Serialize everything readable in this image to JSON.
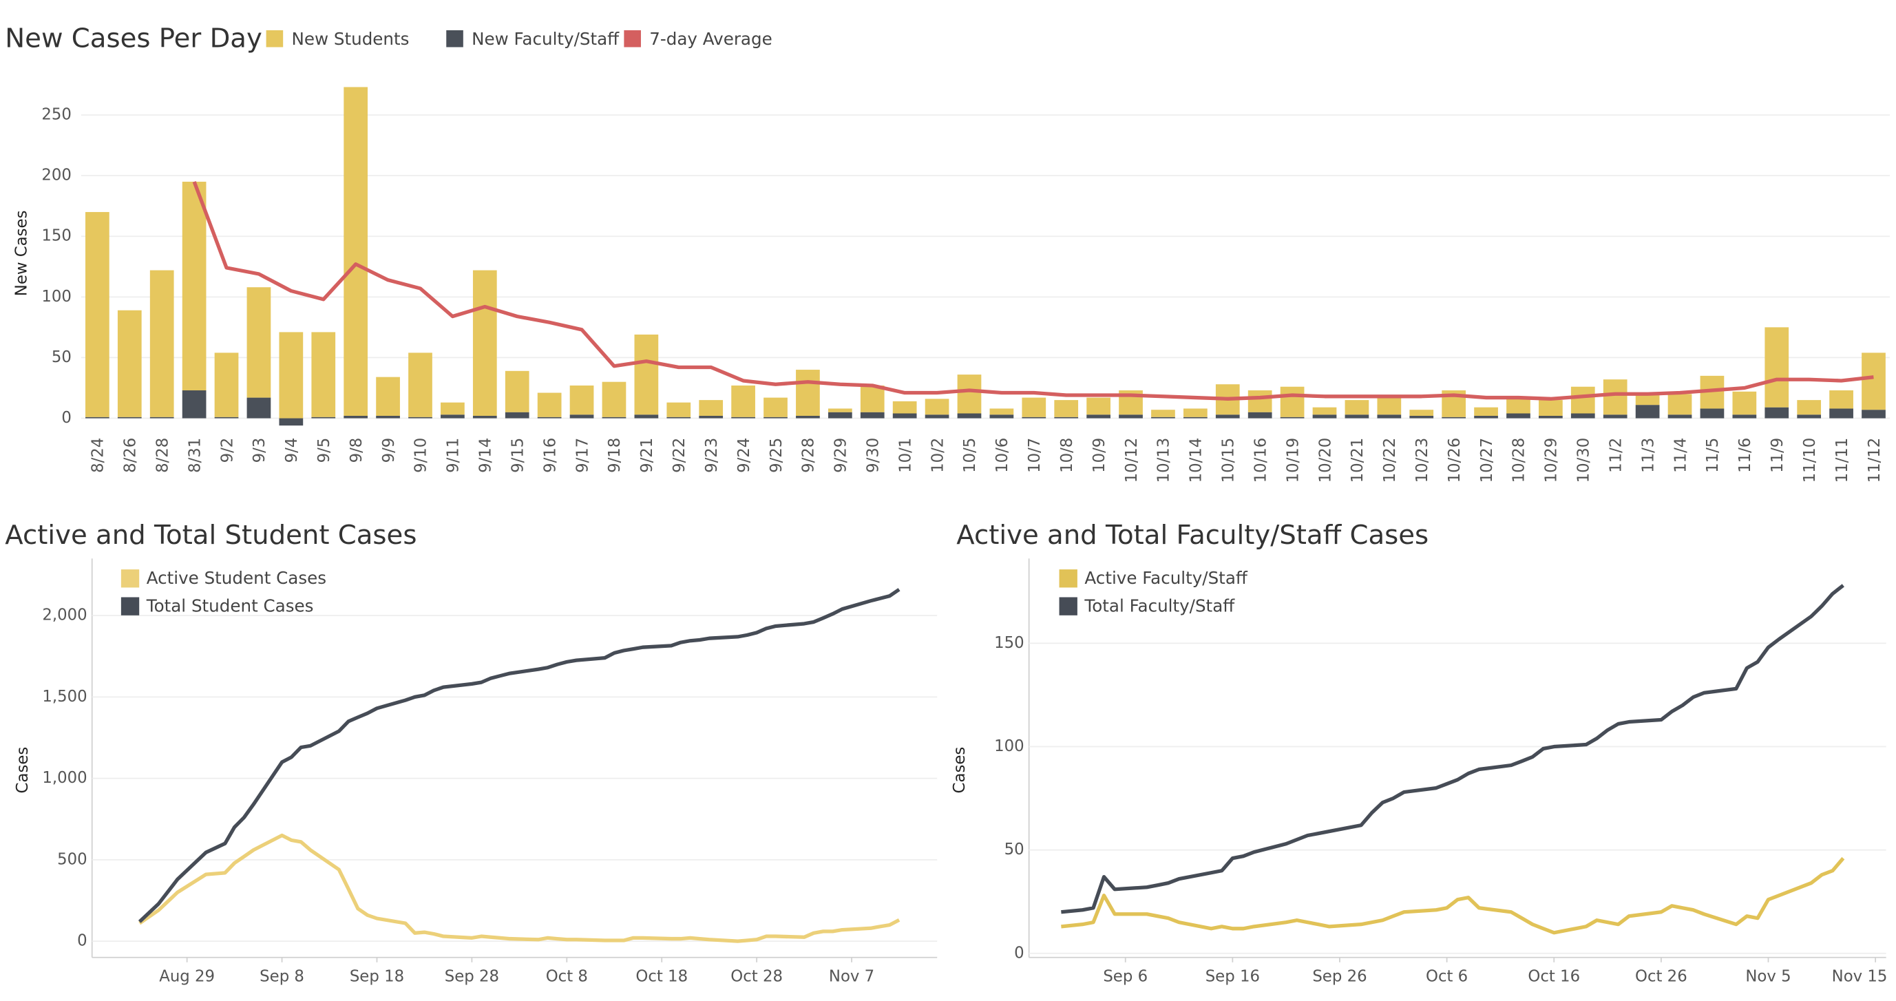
{
  "chart_data": [
    {
      "type": "bar",
      "title": "New Cases Per Day",
      "ylabel": "New Cases",
      "categories": [
        "8/24",
        "8/26",
        "8/28",
        "8/31",
        "9/2",
        "9/3",
        "9/4",
        "9/5",
        "9/8",
        "9/9",
        "9/10",
        "9/11",
        "9/14",
        "9/15",
        "9/16",
        "9/17",
        "9/18",
        "9/21",
        "9/22",
        "9/23",
        "9/24",
        "9/25",
        "9/28",
        "9/29",
        "9/30",
        "10/1",
        "10/2",
        "10/5",
        "10/6",
        "10/7",
        "10/8",
        "10/9",
        "10/12",
        "10/13",
        "10/14",
        "10/15",
        "10/16",
        "10/19",
        "10/20",
        "10/21",
        "10/22",
        "10/23",
        "10/26",
        "10/27",
        "10/28",
        "10/29",
        "10/30",
        "11/2",
        "11/3",
        "11/4",
        "11/5",
        "11/6",
        "11/9",
        "11/10",
        "11/11",
        "11/12"
      ],
      "series": [
        {
          "name": "New Students",
          "type": "bar",
          "color": "#e6c75e",
          "values": [
            169,
            88,
            121,
            172,
            53,
            91,
            71,
            70,
            271,
            32,
            53,
            10,
            120,
            34,
            20,
            24,
            29,
            66,
            12,
            13,
            26,
            16,
            38,
            3,
            22,
            10,
            13,
            32,
            5,
            16,
            14,
            14,
            20,
            6,
            7,
            25,
            18,
            25,
            6,
            12,
            14,
            5,
            22,
            7,
            13,
            13,
            22,
            29,
            8,
            17,
            27,
            19,
            66,
            12,
            15,
            47
          ]
        },
        {
          "name": "New Faculty/Staff",
          "type": "bar",
          "color": "#4a5059",
          "values": [
            1,
            1,
            1,
            23,
            1,
            17,
            -6,
            1,
            2,
            2,
            1,
            3,
            2,
            5,
            1,
            3,
            1,
            3,
            1,
            2,
            1,
            1,
            2,
            5,
            5,
            4,
            3,
            4,
            3,
            1,
            1,
            3,
            3,
            1,
            1,
            3,
            5,
            1,
            3,
            3,
            3,
            2,
            1,
            2,
            4,
            2,
            4,
            3,
            11,
            3,
            8,
            3,
            9,
            3,
            8,
            7
          ]
        },
        {
          "name": "7-day Average",
          "type": "line",
          "color": "#d45f5f",
          "values": [
            null,
            null,
            null,
            195,
            124,
            119,
            105,
            98,
            127,
            114,
            107,
            84,
            92,
            84,
            79,
            73,
            43,
            47,
            42,
            42,
            31,
            28,
            30,
            28,
            27,
            21,
            21,
            23,
            21,
            21,
            19,
            19,
            19,
            18,
            17,
            16,
            17,
            19,
            18,
            18,
            18,
            18,
            19,
            17,
            17,
            16,
            18,
            20,
            20,
            21,
            23,
            25,
            32,
            32,
            31,
            34
          ]
        }
      ],
      "ylim": [
        -8,
        280
      ],
      "yticks": [
        0,
        50,
        100,
        150,
        200,
        250
      ],
      "grid": true
    },
    {
      "type": "line",
      "title": "Active and Total Student Cases",
      "ylabel": "Cases",
      "x": [
        "Aug 24",
        "Aug 26",
        "Aug 28",
        "Aug 31",
        "Sep 2",
        "Sep 3",
        "Sep 4",
        "Sep 5",
        "Sep 8",
        "Sep 9",
        "Sep 10",
        "Sep 11",
        "Sep 14",
        "Sep 15",
        "Sep 16",
        "Sep 17",
        "Sep 18",
        "Sep 21",
        "Sep 22",
        "Sep 23",
        "Sep 24",
        "Sep 25",
        "Sep 28",
        "Sep 29",
        "Sep 30",
        "Oct 1",
        "Oct 2",
        "Oct 5",
        "Oct 6",
        "Oct 7",
        "Oct 8",
        "Oct 9",
        "Oct 12",
        "Oct 13",
        "Oct 14",
        "Oct 15",
        "Oct 16",
        "Oct 19",
        "Oct 20",
        "Oct 21",
        "Oct 22",
        "Oct 23",
        "Oct 26",
        "Oct 27",
        "Oct 28",
        "Oct 29",
        "Oct 30",
        "Nov 2",
        "Nov 3",
        "Nov 4",
        "Nov 5",
        "Nov 6",
        "Nov 9",
        "Nov 10",
        "Nov 11",
        "Nov 12"
      ],
      "series": [
        {
          "name": "Active Student Cases",
          "color": "#ecd079",
          "values": [
            110,
            190,
            300,
            410,
            420,
            480,
            520,
            560,
            650,
            620,
            610,
            560,
            440,
            320,
            200,
            160,
            140,
            110,
            50,
            55,
            45,
            30,
            20,
            30,
            25,
            20,
            15,
            10,
            20,
            15,
            10,
            10,
            5,
            5,
            5,
            20,
            20,
            15,
            15,
            20,
            15,
            10,
            0,
            5,
            10,
            30,
            30,
            25,
            50,
            60,
            60,
            70,
            80,
            90,
            100,
            130
          ]
        },
        {
          "name": "Total Student Cases",
          "color": "#464c56",
          "values": [
            120,
            230,
            380,
            545,
            600,
            700,
            760,
            840,
            1100,
            1130,
            1190,
            1200,
            1290,
            1350,
            1375,
            1400,
            1430,
            1480,
            1500,
            1510,
            1540,
            1560,
            1580,
            1590,
            1615,
            1630,
            1645,
            1670,
            1680,
            1700,
            1715,
            1725,
            1740,
            1770,
            1785,
            1795,
            1805,
            1815,
            1835,
            1845,
            1850,
            1860,
            1870,
            1880,
            1895,
            1920,
            1935,
            1950,
            1960,
            1985,
            2010,
            2040,
            2090,
            2105,
            2120,
            2160
          ]
        }
      ],
      "xlim": [
        "Aug 19",
        "Nov 16"
      ],
      "xticks": [
        "Aug 29",
        "Sep 8",
        "Sep 18",
        "Sep 28",
        "Oct 8",
        "Oct 18",
        "Oct 28",
        "Nov 7"
      ],
      "ylim": [
        -100,
        2350
      ],
      "yticks": [
        0,
        500,
        {
          "value": 1000,
          "label": "1,000"
        },
        {
          "value": 1500,
          "label": "1,500"
        },
        {
          "value": 2000,
          "label": "2,000"
        }
      ],
      "grid": true
    },
    {
      "type": "line",
      "title": "Active and Total Faculty/Staff Cases",
      "ylabel": "Cases",
      "x": [
        "Aug 31",
        "Sep 2",
        "Sep 3",
        "Sep 4",
        "Sep 5",
        "Sep 8",
        "Sep 9",
        "Sep 10",
        "Sep 11",
        "Sep 14",
        "Sep 15",
        "Sep 16",
        "Sep 17",
        "Sep 18",
        "Sep 21",
        "Sep 22",
        "Sep 23",
        "Sep 24",
        "Sep 25",
        "Sep 28",
        "Sep 29",
        "Sep 30",
        "Oct 1",
        "Oct 2",
        "Oct 5",
        "Oct 6",
        "Oct 7",
        "Oct 8",
        "Oct 9",
        "Oct 12",
        "Oct 13",
        "Oct 14",
        "Oct 15",
        "Oct 16",
        "Oct 19",
        "Oct 20",
        "Oct 21",
        "Oct 22",
        "Oct 23",
        "Oct 26",
        "Oct 27",
        "Oct 28",
        "Oct 29",
        "Oct 30",
        "Nov 2",
        "Nov 3",
        "Nov 4",
        "Nov 5",
        "Nov 6",
        "Nov 9",
        "Nov 10",
        "Nov 11",
        "Nov 12"
      ],
      "series": [
        {
          "name": "Active Faculty/Staff",
          "color": "#e1c257",
          "values": [
            13,
            14,
            15,
            28,
            19,
            19,
            18,
            17,
            15,
            12,
            13,
            12,
            12,
            13,
            15,
            16,
            15,
            14,
            13,
            14,
            15,
            16,
            18,
            20,
            21,
            22,
            26,
            27,
            22,
            20,
            17,
            14,
            12,
            10,
            13,
            16,
            15,
            14,
            18,
            20,
            23,
            22,
            21,
            19,
            14,
            18,
            17,
            26,
            28,
            34,
            38,
            40,
            46
          ]
        },
        {
          "name": "Total Faculty/Staff",
          "color": "#464c56",
          "values": [
            20,
            21,
            22,
            37,
            31,
            32,
            33,
            34,
            36,
            39,
            40,
            46,
            47,
            49,
            53,
            55,
            57,
            58,
            59,
            62,
            68,
            73,
            75,
            78,
            80,
            82,
            84,
            87,
            89,
            91,
            93,
            95,
            99,
            100,
            101,
            104,
            108,
            111,
            112,
            113,
            117,
            120,
            124,
            126,
            128,
            138,
            141,
            148,
            152,
            163,
            168,
            174,
            178
          ]
        }
      ],
      "xlim": [
        "Aug 28",
        "Nov 16"
      ],
      "xticks": [
        "Sep 6",
        "Sep 16",
        "Sep 26",
        "Oct 6",
        "Oct 16",
        "Oct 26",
        "Nov 5",
        "Nov 15"
      ],
      "ylim": [
        -2,
        191
      ],
      "yticks": [
        0,
        50,
        100,
        150
      ],
      "grid": true
    }
  ]
}
